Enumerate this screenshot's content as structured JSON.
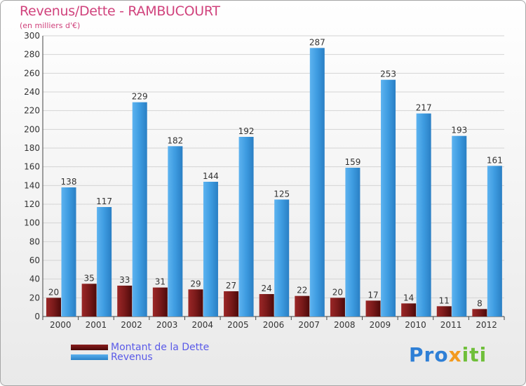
{
  "chart_data": {
    "type": "bar",
    "title": "Revenus/Dette - RAMBUCOURT",
    "subtitle": "(en milliers d'€)",
    "categories": [
      "2000",
      "2001",
      "2002",
      "2003",
      "2004",
      "2005",
      "2006",
      "2007",
      "2008",
      "2009",
      "2010",
      "2011",
      "2012"
    ],
    "series": [
      {
        "name": "Montant de la Dette",
        "color": "#7a1a1a",
        "values": [
          20,
          35,
          33,
          31,
          29,
          27,
          24,
          22,
          20,
          17,
          14,
          11,
          8
        ]
      },
      {
        "name": "Revenus",
        "color": "#3d9be0",
        "values": [
          138,
          117,
          229,
          182,
          144,
          192,
          125,
          287,
          159,
          253,
          217,
          193,
          161
        ]
      }
    ],
    "ylim": [
      0,
      300
    ],
    "yticks": [
      0,
      20,
      40,
      60,
      80,
      100,
      120,
      140,
      160,
      180,
      200,
      220,
      240,
      260,
      280,
      300
    ],
    "grid": true,
    "xlabel": "",
    "ylabel": ""
  },
  "legend": {
    "items": [
      {
        "label": "Montant de la Dette",
        "color": "#6a0f0f"
      },
      {
        "label": "Revenus",
        "color": "#3d9be0"
      }
    ]
  },
  "logo": {
    "part1": "Pro",
    "part2": "x",
    "part3": "iti"
  }
}
